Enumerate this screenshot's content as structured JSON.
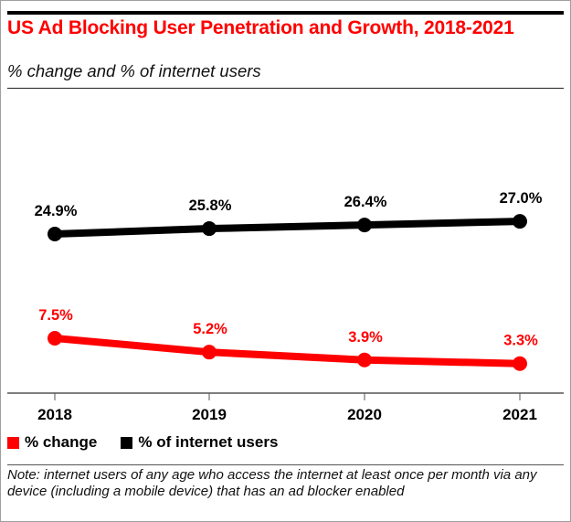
{
  "header": {
    "title": "US Ad Blocking User Penetration and Growth, 2018-2021",
    "subtitle": "% change and % of internet users"
  },
  "legend": [
    {
      "label": "% change",
      "color": "#ff0000"
    },
    {
      "label": "% of internet users",
      "color": "#000000"
    }
  ],
  "note": "Note: internet users of any age who access the internet at least once per month via any device (including a mobile device) that has an ad blocker enabled",
  "chart_data": {
    "type": "line",
    "title": "US Ad Blocking User Penetration and Growth, 2018-2021",
    "subtitle": "% change and % of internet users",
    "x": [
      "2018",
      "2019",
      "2020",
      "2021"
    ],
    "xlabel": "",
    "ylabel": "",
    "grid": false,
    "legend_position": "bottom-left",
    "series": [
      {
        "name": "% of internet users",
        "color": "#000000",
        "values": [
          24.9,
          25.8,
          26.4,
          27.0
        ],
        "labels": [
          "24.9%",
          "25.8%",
          "26.4%",
          "27.0%"
        ]
      },
      {
        "name": "% change",
        "color": "#ff0000",
        "values": [
          7.5,
          5.2,
          3.9,
          3.3
        ],
        "labels": [
          "7.5%",
          "5.2%",
          "3.9%",
          "3.3%"
        ]
      }
    ]
  }
}
